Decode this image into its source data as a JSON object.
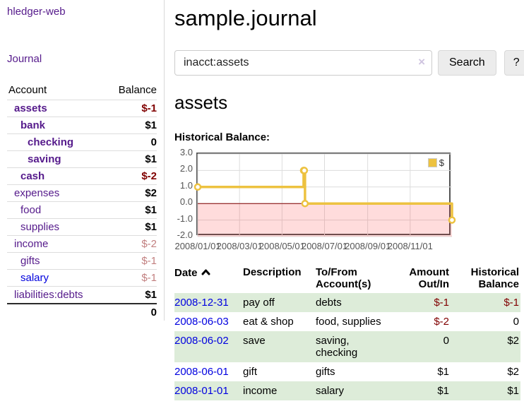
{
  "sidebar": {
    "brand": "hledger-web",
    "journal_link": "Journal",
    "header": {
      "account": "Account",
      "balance": "Balance"
    },
    "accounts": [
      {
        "name": "assets",
        "balance": "$-1"
      },
      {
        "name": "bank",
        "balance": "$1"
      },
      {
        "name": "checking",
        "balance": "0"
      },
      {
        "name": "saving",
        "balance": "$1"
      },
      {
        "name": "cash",
        "balance": "$-2"
      },
      {
        "name": "expenses",
        "balance": "$2"
      },
      {
        "name": "food",
        "balance": "$1"
      },
      {
        "name": "supplies",
        "balance": "$1"
      },
      {
        "name": "income",
        "balance": "$-2"
      },
      {
        "name": "gifts",
        "balance": "$-1"
      },
      {
        "name": "salary",
        "balance": "$-1"
      },
      {
        "name": "liabilities:debts",
        "balance": "$1"
      }
    ],
    "total": "0"
  },
  "main": {
    "title": "sample.journal",
    "search": {
      "value": "inacct:assets",
      "clear_label": "×",
      "button_label": "Search",
      "help_label": "?"
    },
    "account_heading": "assets",
    "chart_title": "Historical Balance:"
  },
  "register": {
    "columns": [
      "Date",
      "Description",
      "To/From Account(s)",
      "Amount Out/In",
      "Historical Balance"
    ],
    "rows": [
      {
        "date": "2008-12-31",
        "description": "pay off",
        "accounts": "debts",
        "amount": "$-1",
        "balance": "$-1"
      },
      {
        "date": "2008-06-03",
        "description": "eat & shop",
        "accounts": "food, supplies",
        "amount": "$-2",
        "balance": "0"
      },
      {
        "date": "2008-06-02",
        "description": "save",
        "accounts": "saving, checking",
        "amount": "0",
        "balance": "$2"
      },
      {
        "date": "2008-06-01",
        "description": "gift",
        "accounts": "gifts",
        "amount": "$1",
        "balance": "$2"
      },
      {
        "date": "2008-01-01",
        "description": "income",
        "accounts": "salary",
        "amount": "$1",
        "balance": "$1"
      }
    ]
  },
  "chart_data": {
    "type": "line",
    "title": "Historical Balance:",
    "series": [
      {
        "name": "$",
        "color": "#edc240",
        "step": true,
        "points": [
          {
            "date": "2008-01-01",
            "day": 0,
            "value": 1
          },
          {
            "date": "2008-06-01",
            "day": 152,
            "value": 2
          },
          {
            "date": "2008-06-02",
            "day": 153,
            "value": 2
          },
          {
            "date": "2008-06-03",
            "day": 154,
            "value": 0
          },
          {
            "date": "2008-12-31",
            "day": 365,
            "value": -1
          }
        ]
      }
    ],
    "x_range_days": [
      0,
      365
    ],
    "x_ticks": [
      {
        "day": 0,
        "label": "2008/01/01"
      },
      {
        "day": 60,
        "label": "2008/03/01"
      },
      {
        "day": 121,
        "label": "2008/05/01"
      },
      {
        "day": 182,
        "label": "2008/07/01"
      },
      {
        "day": 244,
        "label": "2008/09/01"
      },
      {
        "day": 305,
        "label": "2008/11/01"
      }
    ],
    "ylim": [
      -2,
      3
    ],
    "y_ticks": [
      3.0,
      2.0,
      1.0,
      0.0,
      -1.0,
      -2.0
    ],
    "y_tick_labels": [
      "3.0",
      "2.0",
      "1.0",
      "0.0",
      "-1.0",
      "-2.0"
    ],
    "grid": true,
    "legend_position": "top-right",
    "zero_line_color": "#800000",
    "negative_region_fill": "#ffd9d9"
  },
  "colors": {
    "link_visited_purple": "#551a8b",
    "link_blue": "#0000e0",
    "negative_strong": "#800000",
    "negative_muted": "#c28080",
    "row_stripe_green": "#ddecd9",
    "series_gold": "#edc240",
    "plot_border": "#545454"
  }
}
